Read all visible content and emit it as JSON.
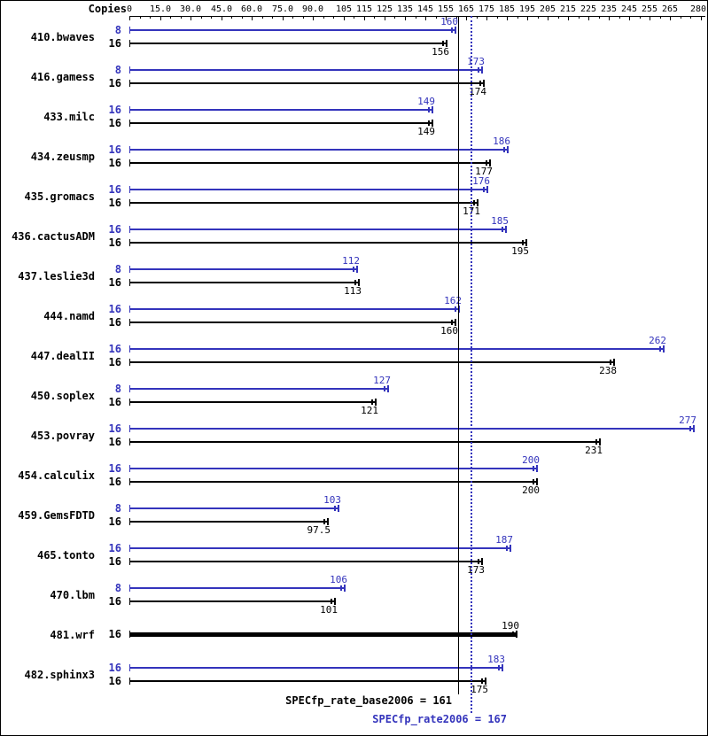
{
  "header": {
    "copies_label": "Copies"
  },
  "colors": {
    "peak": "#3434bc",
    "base": "#000000"
  },
  "footer": {
    "base_label": "SPECfp_rate_base2006 = 161",
    "peak_label": "SPECfp_rate2006 = 167"
  },
  "chart_data": {
    "type": "bar",
    "orientation": "horizontal",
    "xlim": [
      0,
      280
    ],
    "grid": false,
    "axis_position": "top",
    "legend_position": "none",
    "axis_ticks": [
      {
        "value": 0,
        "label": "0"
      },
      {
        "value": 15,
        "label": "15.0"
      },
      {
        "value": 30,
        "label": "30.0"
      },
      {
        "value": 45,
        "label": "45.0"
      },
      {
        "value": 60,
        "label": "60.0"
      },
      {
        "value": 75,
        "label": "75.0"
      },
      {
        "value": 90,
        "label": "90.0"
      },
      {
        "value": 105,
        "label": "105"
      },
      {
        "value": 115,
        "label": "115"
      },
      {
        "value": 125,
        "label": "125"
      },
      {
        "value": 135,
        "label": "135"
      },
      {
        "value": 145,
        "label": "145"
      },
      {
        "value": 155,
        "label": "155"
      },
      {
        "value": 165,
        "label": "165"
      },
      {
        "value": 175,
        "label": "175"
      },
      {
        "value": 185,
        "label": "185"
      },
      {
        "value": 195,
        "label": "195"
      },
      {
        "value": 205,
        "label": "205"
      },
      {
        "value": 215,
        "label": "215"
      },
      {
        "value": 225,
        "label": "225"
      },
      {
        "value": 235,
        "label": "235"
      },
      {
        "value": 245,
        "label": "245"
      },
      {
        "value": 255,
        "label": "255"
      },
      {
        "value": 265,
        "label": "265"
      },
      {
        "value": 280,
        "label": "280"
      }
    ],
    "reference_lines": [
      {
        "value": 161,
        "series": "base",
        "style": "solid",
        "label": "SPECfp_rate_base2006 = 161"
      },
      {
        "value": 167,
        "series": "peak",
        "style": "dotted",
        "label": "SPECfp_rate2006 = 167"
      }
    ],
    "series_legend": [
      {
        "name": "peak",
        "color": "#3434bc"
      },
      {
        "name": "base",
        "color": "#000000"
      }
    ],
    "benchmarks": [
      {
        "name": "410.bwaves",
        "bars": [
          {
            "series": "peak",
            "copies": 8,
            "value": 160
          },
          {
            "series": "base",
            "copies": 16,
            "value": 156
          }
        ]
      },
      {
        "name": "416.gamess",
        "bars": [
          {
            "series": "peak",
            "copies": 8,
            "value": 173
          },
          {
            "series": "base",
            "copies": 16,
            "value": 174
          }
        ]
      },
      {
        "name": "433.milc",
        "bars": [
          {
            "series": "peak",
            "copies": 16,
            "value": 149
          },
          {
            "series": "base",
            "copies": 16,
            "value": 149
          }
        ]
      },
      {
        "name": "434.zeusmp",
        "bars": [
          {
            "series": "peak",
            "copies": 16,
            "value": 186
          },
          {
            "series": "base",
            "copies": 16,
            "value": 177
          }
        ]
      },
      {
        "name": "435.gromacs",
        "bars": [
          {
            "series": "peak",
            "copies": 16,
            "value": 176
          },
          {
            "series": "base",
            "copies": 16,
            "value": 171
          }
        ]
      },
      {
        "name": "436.cactusADM",
        "bars": [
          {
            "series": "peak",
            "copies": 16,
            "value": 185
          },
          {
            "series": "base",
            "copies": 16,
            "value": 195
          }
        ]
      },
      {
        "name": "437.leslie3d",
        "bars": [
          {
            "series": "peak",
            "copies": 8,
            "value": 112
          },
          {
            "series": "base",
            "copies": 16,
            "value": 113
          }
        ]
      },
      {
        "name": "444.namd",
        "bars": [
          {
            "series": "peak",
            "copies": 16,
            "value": 162
          },
          {
            "series": "base",
            "copies": 16,
            "value": 160
          }
        ]
      },
      {
        "name": "447.dealII",
        "bars": [
          {
            "series": "peak",
            "copies": 16,
            "value": 262
          },
          {
            "series": "base",
            "copies": 16,
            "value": 238
          }
        ]
      },
      {
        "name": "450.soplex",
        "bars": [
          {
            "series": "peak",
            "copies": 8,
            "value": 127
          },
          {
            "series": "base",
            "copies": 16,
            "value": 121
          }
        ]
      },
      {
        "name": "453.povray",
        "bars": [
          {
            "series": "peak",
            "copies": 16,
            "value": 277
          },
          {
            "series": "base",
            "copies": 16,
            "value": 231
          }
        ]
      },
      {
        "name": "454.calculix",
        "bars": [
          {
            "series": "peak",
            "copies": 16,
            "value": 200
          },
          {
            "series": "base",
            "copies": 16,
            "value": 200
          }
        ]
      },
      {
        "name": "459.GemsFDTD",
        "bars": [
          {
            "series": "peak",
            "copies": 8,
            "value": 103
          },
          {
            "series": "base",
            "copies": 16,
            "value": 97.5
          }
        ]
      },
      {
        "name": "465.tonto",
        "bars": [
          {
            "series": "peak",
            "copies": 16,
            "value": 187
          },
          {
            "series": "base",
            "copies": 16,
            "value": 173
          }
        ]
      },
      {
        "name": "470.lbm",
        "bars": [
          {
            "series": "peak",
            "copies": 8,
            "value": 106
          },
          {
            "series": "base",
            "copies": 16,
            "value": 101
          }
        ]
      },
      {
        "name": "481.wrf",
        "bars": [
          {
            "series": "base",
            "copies": 16,
            "value": 190,
            "thick": true
          }
        ]
      },
      {
        "name": "482.sphinx3",
        "bars": [
          {
            "series": "peak",
            "copies": 16,
            "value": 183
          },
          {
            "series": "base",
            "copies": 16,
            "value": 175
          }
        ]
      }
    ]
  }
}
